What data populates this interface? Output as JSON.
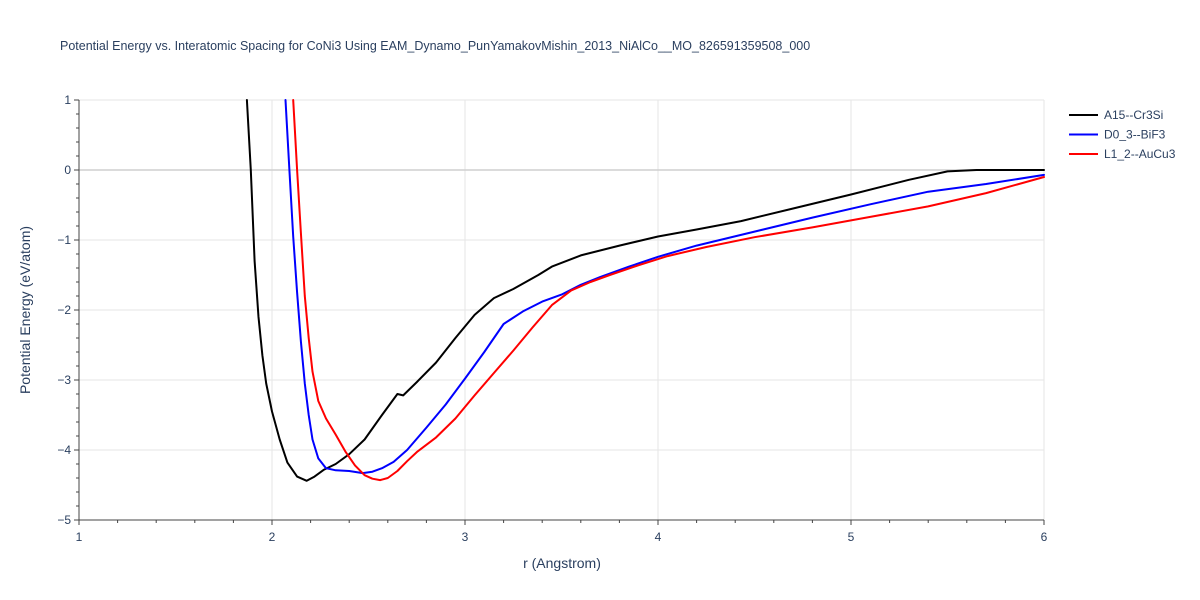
{
  "chart_data": {
    "type": "line",
    "title": "Potential Energy vs. Interatomic Spacing for CoNi3 Using EAM_Dynamo_PunYamakovMishin_2013_NiAlCo__MO_826591359508_000",
    "xlabel": "r (Angstrom)",
    "ylabel": "Potential Energy (eV/atom)",
    "xlim": [
      1,
      6
    ],
    "ylim": [
      -5,
      1
    ],
    "xticks": [
      1,
      2,
      3,
      4,
      5,
      6
    ],
    "xtick_labels": [
      "1",
      "2",
      "3",
      "4",
      "5",
      "6"
    ],
    "yticks": [
      -5,
      -4,
      -3,
      -2,
      -1,
      0,
      1
    ],
    "ytick_labels": [
      "−5",
      "−4",
      "−3",
      "−2",
      "−1",
      "0",
      "1"
    ],
    "grid": true,
    "legend_position": "top-right",
    "series": [
      {
        "name": "A15--Cr3Si",
        "color": "#000000",
        "x": [
          1.87,
          1.89,
          1.91,
          1.93,
          1.95,
          1.97,
          2.0,
          2.04,
          2.08,
          2.13,
          2.18,
          2.22,
          2.27,
          2.33,
          2.4,
          2.48,
          2.57,
          2.65,
          2.68,
          2.75,
          2.85,
          2.95,
          3.05,
          3.15,
          3.25,
          3.38,
          3.45,
          3.6,
          3.8,
          4.0,
          4.2,
          4.43,
          4.7,
          5.0,
          5.3,
          5.5,
          5.65,
          6.0
        ],
        "y": [
          1.0,
          0.0,
          -1.3,
          -2.1,
          -2.65,
          -3.05,
          -3.45,
          -3.85,
          -4.18,
          -4.38,
          -4.44,
          -4.38,
          -4.28,
          -4.2,
          -4.06,
          -3.85,
          -3.5,
          -3.2,
          -3.22,
          -3.03,
          -2.75,
          -2.4,
          -2.07,
          -1.83,
          -1.7,
          -1.5,
          -1.38,
          -1.22,
          -1.08,
          -0.95,
          -0.85,
          -0.73,
          -0.55,
          -0.35,
          -0.14,
          -0.02,
          0.0,
          0.0
        ]
      },
      {
        "name": "D0_3--BiF3",
        "color": "#0000ff",
        "x": [
          2.07,
          2.09,
          2.11,
          2.13,
          2.15,
          2.17,
          2.19,
          2.21,
          2.24,
          2.28,
          2.33,
          2.4,
          2.47,
          2.52,
          2.57,
          2.63,
          2.7,
          2.8,
          2.9,
          3.0,
          3.1,
          3.2,
          3.3,
          3.4,
          3.5,
          3.6,
          3.7,
          3.85,
          4.0,
          4.2,
          4.5,
          4.8,
          5.1,
          5.4,
          5.7,
          6.0
        ],
        "y": [
          1.0,
          0.0,
          -0.95,
          -1.75,
          -2.45,
          -3.05,
          -3.5,
          -3.85,
          -4.12,
          -4.26,
          -4.29,
          -4.3,
          -4.33,
          -4.31,
          -4.26,
          -4.17,
          -4.0,
          -3.68,
          -3.35,
          -2.98,
          -2.6,
          -2.2,
          -2.02,
          -1.88,
          -1.78,
          -1.64,
          -1.53,
          -1.38,
          -1.24,
          -1.08,
          -0.88,
          -0.68,
          -0.49,
          -0.31,
          -0.2,
          -0.07
        ]
      },
      {
        "name": "L1_2--AuCu3",
        "color": "#ff0000",
        "x": [
          2.11,
          2.13,
          2.15,
          2.17,
          2.19,
          2.21,
          2.24,
          2.28,
          2.33,
          2.38,
          2.43,
          2.48,
          2.52,
          2.56,
          2.6,
          2.65,
          2.7,
          2.75,
          2.85,
          2.95,
          3.05,
          3.15,
          3.25,
          3.35,
          3.45,
          3.55,
          3.65,
          3.75,
          3.9,
          4.05,
          4.25,
          4.5,
          4.8,
          5.1,
          5.4,
          5.7,
          6.0
        ],
        "y": [
          1.0,
          0.0,
          -0.9,
          -1.8,
          -2.4,
          -2.88,
          -3.3,
          -3.55,
          -3.78,
          -4.02,
          -4.22,
          -4.36,
          -4.41,
          -4.43,
          -4.4,
          -4.3,
          -4.16,
          -4.03,
          -3.82,
          -3.55,
          -3.22,
          -2.9,
          -2.58,
          -2.25,
          -1.93,
          -1.72,
          -1.6,
          -1.5,
          -1.36,
          -1.23,
          -1.1,
          -0.96,
          -0.82,
          -0.67,
          -0.52,
          -0.33,
          -0.1
        ]
      }
    ]
  }
}
